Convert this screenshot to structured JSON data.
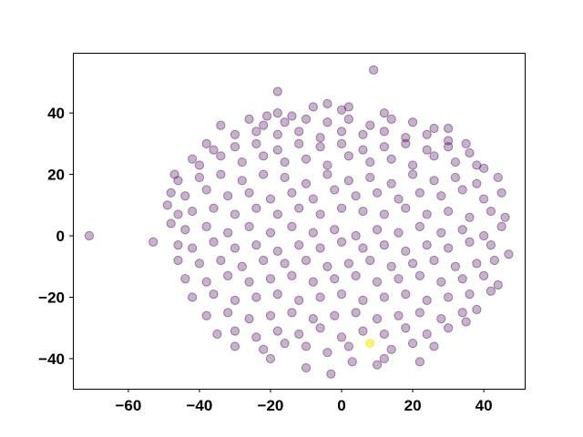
{
  "chart_data": {
    "type": "scatter",
    "title": "",
    "xlabel": "",
    "ylabel": "",
    "xlim": [
      -75.6,
      51.5
    ],
    "ylim": [
      -49.8,
      59.6
    ],
    "grid": false,
    "xticks": [
      -60,
      -40,
      -20,
      0,
      20,
      40
    ],
    "yticks": [
      -40,
      -20,
      0,
      20,
      40
    ],
    "xtick_labels": [
      "−60",
      "−40",
      "−20",
      "0",
      "20",
      "40"
    ],
    "ytick_labels": [
      "−40",
      "−20",
      "0",
      "20",
      "40"
    ],
    "colors": {
      "main": "#440154",
      "highlight": "#fde725"
    },
    "point_alpha": 0.3,
    "series": [
      {
        "color": "#440154",
        "points": [
          [
            -71,
            0
          ],
          [
            -53,
            -2
          ],
          [
            9,
            54
          ],
          [
            -18,
            47
          ],
          [
            -8,
            42
          ],
          [
            -4,
            43
          ],
          [
            0,
            41
          ],
          [
            2,
            42
          ],
          [
            12,
            40
          ],
          [
            -18,
            40
          ],
          [
            -14,
            39
          ],
          [
            -21,
            39
          ],
          [
            -26,
            38
          ],
          [
            -22,
            36
          ],
          [
            -16,
            37
          ],
          [
            -10,
            38
          ],
          [
            -4,
            37
          ],
          [
            2,
            38
          ],
          [
            8,
            36
          ],
          [
            14,
            38
          ],
          [
            20,
            37
          ],
          [
            26,
            35
          ],
          [
            30,
            35
          ],
          [
            -34,
            36
          ],
          [
            -30,
            33
          ],
          [
            -24,
            34
          ],
          [
            -18,
            33
          ],
          [
            -12,
            34
          ],
          [
            -6,
            32
          ],
          [
            0,
            34
          ],
          [
            6,
            33
          ],
          [
            12,
            34
          ],
          [
            18,
            32
          ],
          [
            24,
            33
          ],
          [
            30,
            31
          ],
          [
            35,
            30
          ],
          [
            -38,
            30
          ],
          [
            -36,
            28
          ],
          [
            -30,
            29
          ],
          [
            -24,
            30
          ],
          [
            -18,
            28
          ],
          [
            -12,
            30
          ],
          [
            -6,
            29
          ],
          [
            0,
            30
          ],
          [
            6,
            28
          ],
          [
            12,
            29
          ],
          [
            18,
            30
          ],
          [
            24,
            28
          ],
          [
            30,
            29
          ],
          [
            36,
            27
          ],
          [
            -42,
            25
          ],
          [
            -40,
            23
          ],
          [
            -34,
            26
          ],
          [
            -28,
            24
          ],
          [
            -22,
            26
          ],
          [
            -16,
            24
          ],
          [
            -10,
            25
          ],
          [
            -4,
            23
          ],
          [
            2,
            26
          ],
          [
            8,
            24
          ],
          [
            14,
            25
          ],
          [
            20,
            23
          ],
          [
            26,
            26
          ],
          [
            32,
            24
          ],
          [
            38,
            23
          ],
          [
            40,
            22
          ],
          [
            -47,
            20
          ],
          [
            -46,
            18
          ],
          [
            -40,
            19
          ],
          [
            -34,
            20
          ],
          [
            -28,
            18
          ],
          [
            -22,
            20
          ],
          [
            -16,
            19
          ],
          [
            -10,
            17
          ],
          [
            -4,
            20
          ],
          [
            2,
            18
          ],
          [
            8,
            19
          ],
          [
            14,
            17
          ],
          [
            20,
            20
          ],
          [
            26,
            18
          ],
          [
            32,
            19
          ],
          [
            38,
            17
          ],
          [
            44,
            19
          ],
          [
            -48,
            14
          ],
          [
            -44,
            13
          ],
          [
            -38,
            15
          ],
          [
            -32,
            13
          ],
          [
            -26,
            14
          ],
          [
            -20,
            12
          ],
          [
            -14,
            14
          ],
          [
            -8,
            12
          ],
          [
            -2,
            15
          ],
          [
            4,
            13
          ],
          [
            10,
            14
          ],
          [
            16,
            12
          ],
          [
            22,
            14
          ],
          [
            28,
            13
          ],
          [
            34,
            15
          ],
          [
            40,
            12
          ],
          [
            45,
            14
          ],
          [
            -49,
            10
          ],
          [
            -46,
            7
          ],
          [
            -42,
            8
          ],
          [
            -36,
            9
          ],
          [
            -30,
            7
          ],
          [
            -24,
            9
          ],
          [
            -18,
            7
          ],
          [
            -12,
            9
          ],
          [
            -6,
            7
          ],
          [
            0,
            9
          ],
          [
            6,
            8
          ],
          [
            12,
            7
          ],
          [
            18,
            9
          ],
          [
            24,
            7
          ],
          [
            30,
            8
          ],
          [
            36,
            6
          ],
          [
            42,
            8
          ],
          [
            46,
            6
          ],
          [
            -48,
            4
          ],
          [
            -44,
            2
          ],
          [
            -38,
            3
          ],
          [
            -32,
            1
          ],
          [
            -26,
            3
          ],
          [
            -20,
            1
          ],
          [
            -14,
            3
          ],
          [
            -8,
            1
          ],
          [
            -2,
            2
          ],
          [
            4,
            0
          ],
          [
            10,
            2
          ],
          [
            16,
            1
          ],
          [
            22,
            3
          ],
          [
            28,
            1
          ],
          [
            34,
            2
          ],
          [
            40,
            0
          ],
          [
            45,
            3
          ],
          [
            -46,
            -3
          ],
          [
            -42,
            -4
          ],
          [
            -36,
            -2
          ],
          [
            -30,
            -4
          ],
          [
            -24,
            -3
          ],
          [
            -18,
            -5
          ],
          [
            -12,
            -3
          ],
          [
            -6,
            -4
          ],
          [
            0,
            -2
          ],
          [
            6,
            -4
          ],
          [
            12,
            -3
          ],
          [
            18,
            -5
          ],
          [
            24,
            -3
          ],
          [
            30,
            -4
          ],
          [
            36,
            -2
          ],
          [
            42,
            -3
          ],
          [
            47,
            -6
          ],
          [
            -46,
            -8
          ],
          [
            -40,
            -9
          ],
          [
            -34,
            -8
          ],
          [
            -28,
            -10
          ],
          [
            -22,
            -8
          ],
          [
            -16,
            -9
          ],
          [
            -10,
            -8
          ],
          [
            -4,
            -10
          ],
          [
            2,
            -9
          ],
          [
            8,
            -8
          ],
          [
            14,
            -10
          ],
          [
            20,
            -9
          ],
          [
            26,
            -8
          ],
          [
            32,
            -10
          ],
          [
            38,
            -9
          ],
          [
            43,
            -8
          ],
          [
            -44,
            -14
          ],
          [
            -38,
            -15
          ],
          [
            -32,
            -13
          ],
          [
            -26,
            -15
          ],
          [
            -20,
            -14
          ],
          [
            -14,
            -13
          ],
          [
            -8,
            -15
          ],
          [
            -2,
            -14
          ],
          [
            4,
            -13
          ],
          [
            10,
            -15
          ],
          [
            16,
            -14
          ],
          [
            22,
            -13
          ],
          [
            28,
            -15
          ],
          [
            34,
            -14
          ],
          [
            40,
            -13
          ],
          [
            44,
            -16
          ],
          [
            -42,
            -20
          ],
          [
            -36,
            -19
          ],
          [
            -30,
            -21
          ],
          [
            -24,
            -20
          ],
          [
            -18,
            -19
          ],
          [
            -12,
            -21
          ],
          [
            -6,
            -20
          ],
          [
            0,
            -19
          ],
          [
            6,
            -21
          ],
          [
            12,
            -20
          ],
          [
            18,
            -19
          ],
          [
            24,
            -21
          ],
          [
            30,
            -20
          ],
          [
            36,
            -19
          ],
          [
            42,
            -18
          ],
          [
            -38,
            -26
          ],
          [
            -32,
            -25
          ],
          [
            -26,
            -27
          ],
          [
            -20,
            -26
          ],
          [
            -14,
            -25
          ],
          [
            -8,
            -27
          ],
          [
            -2,
            -26
          ],
          [
            4,
            -25
          ],
          [
            10,
            -27
          ],
          [
            16,
            -26
          ],
          [
            22,
            -25
          ],
          [
            28,
            -27
          ],
          [
            34,
            -25
          ],
          [
            38,
            -24
          ],
          [
            -35,
            -32
          ],
          [
            -30,
            -31
          ],
          [
            -24,
            -33
          ],
          [
            -18,
            -31
          ],
          [
            -12,
            -32
          ],
          [
            -6,
            -30
          ],
          [
            0,
            -33
          ],
          [
            6,
            -31
          ],
          [
            12,
            -32
          ],
          [
            18,
            -30
          ],
          [
            24,
            -32
          ],
          [
            30,
            -30
          ],
          [
            35,
            -28
          ],
          [
            -30,
            -36
          ],
          [
            -22,
            -37
          ],
          [
            -16,
            -35
          ],
          [
            -10,
            -36
          ],
          [
            -4,
            -38
          ],
          [
            2,
            -36
          ],
          [
            14,
            -37
          ],
          [
            20,
            -35
          ],
          [
            26,
            -36
          ],
          [
            -20,
            -40
          ],
          [
            -10,
            -43
          ],
          [
            -3,
            -45
          ],
          [
            3,
            -41
          ],
          [
            10,
            -42
          ],
          [
            22,
            -41
          ],
          [
            12,
            -40
          ]
        ]
      },
      {
        "color": "#fde725",
        "points": [
          [
            8,
            -35
          ]
        ]
      }
    ]
  }
}
